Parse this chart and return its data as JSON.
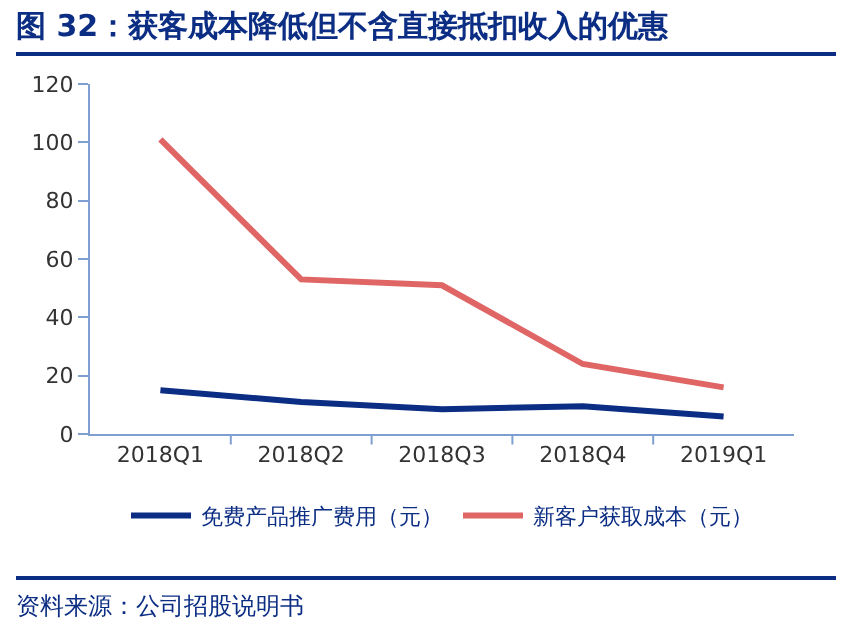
{
  "chart_data": {
    "type": "line",
    "title": "图 32：获客成本降低但不含直接抵扣收入的优惠",
    "categories": [
      "2018Q1",
      "2018Q2",
      "2018Q3",
      "2018Q4",
      "2019Q1"
    ],
    "series": [
      {
        "name": "免费产品推广费用（元）",
        "color": "#0b2d83",
        "values": [
          15,
          11,
          8.5,
          9.5,
          6
        ]
      },
      {
        "name": "新客户获取成本（元）",
        "color": "#e06666",
        "values": [
          101,
          53,
          51,
          24,
          16
        ]
      }
    ],
    "ylim": [
      0,
      120
    ],
    "yticks": [
      0,
      20,
      40,
      60,
      80,
      100,
      120
    ],
    "grid": false,
    "legend": "bottom",
    "marker": "none",
    "line_style": "solid",
    "annotations": [
      "资料来源：公司招股说明书"
    ]
  }
}
